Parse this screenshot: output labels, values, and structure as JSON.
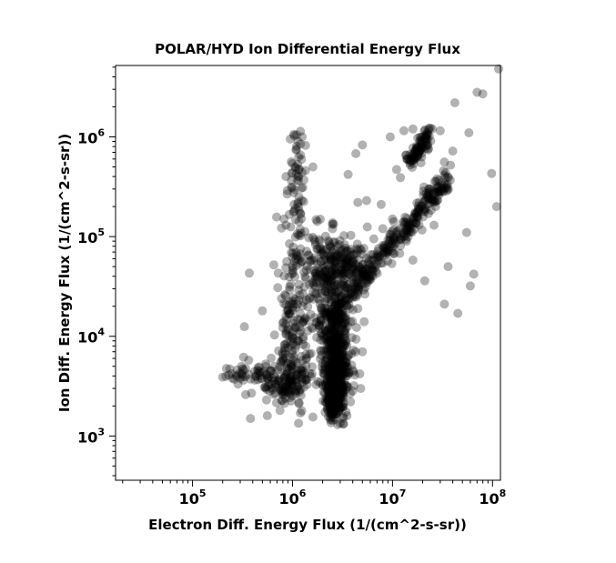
{
  "chart_data": {
    "type": "scatter",
    "title": "POLAR/HYD  Ion Differential Energy Flux",
    "xlabel": "Electron Diff. Energy Flux (1/(cm^2-s-sr))",
    "ylabel": "Ion Diff. Energy Flux (1/(cm^2-s-sr))",
    "x_scale": "log",
    "y_scale": "log",
    "xlim": [
      17000,
      120000000
    ],
    "ylim": [
      360,
      5200000
    ],
    "x_ticks": [
      {
        "value": 100000,
        "base": "10",
        "exp": "5"
      },
      {
        "value": 1000000,
        "base": "10",
        "exp": "6"
      },
      {
        "value": 10000000,
        "base": "10",
        "exp": "7"
      },
      {
        "value": 100000000,
        "base": "10",
        "exp": "8"
      }
    ],
    "y_ticks": [
      {
        "value": 1000,
        "base": "10",
        "exp": "3"
      },
      {
        "value": 10000,
        "base": "10",
        "exp": "4"
      },
      {
        "value": 100000,
        "base": "10",
        "exp": "5"
      },
      {
        "value": 1000000,
        "base": "10",
        "exp": "6"
      }
    ],
    "marker_color": "#000000",
    "marker_alpha": 0.3,
    "grid": false,
    "points": [
      [
        380000,
        1500
      ],
      [
        560000,
        1600
      ],
      [
        1600000,
        1550
      ],
      [
        3500000,
        1600
      ],
      [
        3800000,
        2200
      ],
      [
        230000,
        4100
      ],
      [
        200000,
        3900
      ],
      [
        250000,
        3800
      ],
      [
        280000,
        4600
      ],
      [
        310000,
        5000
      ],
      [
        340000,
        2600
      ],
      [
        330000,
        12500
      ],
      [
        370000,
        43000
      ],
      [
        950000,
        950000
      ],
      [
        1100000,
        1050000
      ],
      [
        1250000,
        1000000
      ],
      [
        1350000,
        820000
      ],
      [
        1000000,
        540000
      ],
      [
        1150000,
        470000
      ],
      [
        860000,
        400000
      ],
      [
        1300000,
        370000
      ],
      [
        1600000,
        500000
      ],
      [
        3600000,
        420000
      ],
      [
        4300000,
        680000
      ],
      [
        5000000,
        830000
      ],
      [
        4500000,
        220000
      ],
      [
        5500000,
        230000
      ],
      [
        7700000,
        210000
      ],
      [
        6500000,
        95000
      ],
      [
        10000000,
        150000
      ],
      [
        12000000,
        390000
      ],
      [
        14000000,
        600000
      ],
      [
        11000000,
        470000
      ],
      [
        9500000,
        1000000
      ],
      [
        13000000,
        1150000
      ],
      [
        16000000,
        1200000
      ],
      [
        20000000,
        1000000
      ],
      [
        25000000,
        1200000
      ],
      [
        30000000,
        1150000
      ],
      [
        33000000,
        560000
      ],
      [
        38000000,
        520000
      ],
      [
        40000000,
        720000
      ],
      [
        42000000,
        2200000
      ],
      [
        58000000,
        1100000
      ],
      [
        70000000,
        2800000
      ],
      [
        80000000,
        2700000
      ],
      [
        115000000,
        4800000
      ],
      [
        98000000,
        430000
      ],
      [
        110000000,
        200000
      ],
      [
        55000000,
        110000
      ],
      [
        27000000,
        200000
      ],
      [
        22000000,
        250000
      ],
      [
        26000000,
        130000
      ],
      [
        36000000,
        50000
      ],
      [
        60000000,
        32000
      ],
      [
        65000000,
        42000
      ],
      [
        45000000,
        17000
      ],
      [
        33000000,
        21000
      ],
      [
        21000000,
        36000
      ],
      [
        16000000,
        58000
      ],
      [
        4500000,
        19000
      ],
      [
        5200000,
        14000
      ],
      [
        5000000,
        7000
      ],
      [
        4700000,
        4200
      ],
      [
        4800000,
        3000
      ],
      [
        3600000,
        3100
      ],
      [
        4200000,
        4100
      ],
      [
        1200000,
        1700
      ],
      [
        850000,
        2400
      ],
      [
        680000,
        3100
      ],
      [
        600000,
        4500
      ],
      [
        550000,
        2300
      ],
      [
        720000,
        43000
      ],
      [
        960000,
        125000
      ],
      [
        860000,
        130000
      ],
      [
        500000,
        18000
      ],
      [
        650000,
        52000
      ],
      [
        3800000,
        65000
      ],
      [
        6000000,
        37000
      ],
      [
        8000000,
        120000
      ],
      [
        9000000,
        93000
      ],
      [
        5600000,
        125000
      ],
      [
        2400000,
        7000
      ],
      [
        2600000,
        14000
      ],
      [
        2900000,
        21000
      ],
      [
        3100000,
        33000
      ]
    ]
  }
}
